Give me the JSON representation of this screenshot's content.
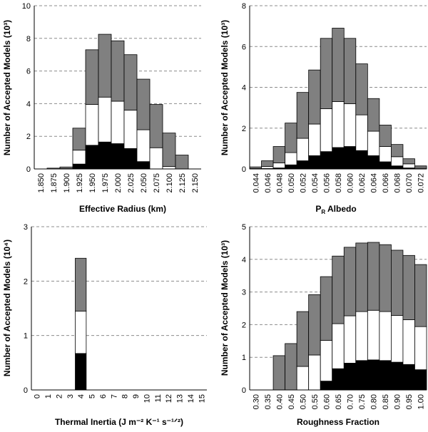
{
  "chart_data": [
    {
      "type": "bar",
      "stacked": true,
      "title": "",
      "xlabel": "Effective Radius (km)",
      "ylabel": "Number of Accepted Models (10³)",
      "ylim": [
        0,
        10
      ],
      "yticks": [
        "0",
        "2",
        "4",
        "6",
        "8",
        "10"
      ],
      "grid": true,
      "categories": [
        "1.850",
        "1.875",
        "1.900",
        "1.925",
        "1.950",
        "1.975",
        "2.000",
        "2.025",
        "2.050",
        "2.075",
        "2.100",
        "2.125",
        "2.150"
      ],
      "series": [
        {
          "name": "black",
          "color": "#000000",
          "values": [
            0,
            0,
            0,
            0.3,
            1.45,
            1.65,
            1.55,
            1.25,
            0.45,
            0,
            0,
            0,
            0
          ]
        },
        {
          "name": "white",
          "color": "#ffffff",
          "values": [
            0,
            0,
            0.02,
            0.85,
            2.5,
            2.75,
            2.6,
            2.35,
            1.95,
            1.3,
            0.15,
            0,
            0
          ]
        },
        {
          "name": "gray",
          "color": "#808080",
          "values": [
            0,
            0.05,
            0.1,
            1.35,
            3.35,
            3.85,
            3.7,
            3.4,
            3.1,
            2.65,
            2.05,
            0.85,
            0
          ]
        }
      ]
    },
    {
      "type": "bar",
      "stacked": true,
      "title": "",
      "xlabel": "P_R Albedo",
      "xlabel_main": "P",
      "xlabel_sub": "R",
      "xlabel_rest": " Albedo",
      "ylabel": "Number of Accepted Models (10³)",
      "ylim": [
        0,
        8
      ],
      "yticks": [
        "0",
        "2",
        "4",
        "6",
        "8"
      ],
      "grid": true,
      "categories": [
        "0.044",
        "0.046",
        "0.048",
        "0.050",
        "0.052",
        "0.054",
        "0.056",
        "0.058",
        "0.060",
        "0.062",
        "0.064",
        "0.066",
        "0.068",
        "0.070",
        "0.072"
      ],
      "series": [
        {
          "name": "black",
          "color": "#000000",
          "values": [
            0,
            0.02,
            0.05,
            0.2,
            0.4,
            0.65,
            0.85,
            1.05,
            1.1,
            0.9,
            0.65,
            0.35,
            0.15,
            0.05,
            0.02
          ]
        },
        {
          "name": "white",
          "color": "#ffffff",
          "values": [
            0.02,
            0.1,
            0.25,
            0.6,
            1.1,
            1.55,
            2.1,
            2.25,
            2.1,
            1.75,
            1.2,
            0.75,
            0.45,
            0.2,
            0.05
          ]
        },
        {
          "name": "gray",
          "color": "#808080",
          "values": [
            0.08,
            0.28,
            0.8,
            1.45,
            2.25,
            2.65,
            3.45,
            3.6,
            3.2,
            2.5,
            1.6,
            1.05,
            0.6,
            0.25,
            0.08
          ]
        }
      ]
    },
    {
      "type": "bar",
      "stacked": true,
      "title": "",
      "xlabel": "Thermal Inertia (J m⁻² K⁻¹ s⁻¹ᐟ²)",
      "ylabel": "Number of Accepted Models (10⁴)",
      "ylim": [
        0,
        3
      ],
      "yticks": [
        "0",
        "1",
        "2",
        "3"
      ],
      "grid": true,
      "categories": [
        "0",
        "1",
        "2",
        "3",
        "4",
        "5",
        "6",
        "7",
        "8",
        "9",
        "10",
        "11",
        "12",
        "13",
        "14",
        "15"
      ],
      "series": [
        {
          "name": "black",
          "color": "#000000",
          "values": [
            0,
            0,
            0,
            0,
            0.67,
            0,
            0,
            0,
            0,
            0,
            0,
            0,
            0,
            0,
            0,
            0
          ]
        },
        {
          "name": "white",
          "color": "#ffffff",
          "values": [
            0,
            0,
            0,
            0,
            0.78,
            0,
            0,
            0,
            0,
            0,
            0,
            0,
            0,
            0,
            0,
            0
          ]
        },
        {
          "name": "gray",
          "color": "#808080",
          "values": [
            0,
            0,
            0,
            0,
            0.97,
            0,
            0,
            0,
            0,
            0,
            0,
            0,
            0,
            0,
            0,
            0
          ]
        }
      ]
    },
    {
      "type": "bar",
      "stacked": true,
      "title": "",
      "xlabel": "Roughness Fraction",
      "ylabel": "Number of Accepted Models (10³)",
      "ylim": [
        0,
        5
      ],
      "yticks": [
        "0",
        "1",
        "2",
        "3",
        "4",
        "5"
      ],
      "grid": true,
      "categories": [
        "0.30",
        "0.35",
        "0.40",
        "0.45",
        "0.50",
        "0.55",
        "0.60",
        "0.65",
        "0.70",
        "0.75",
        "0.80",
        "0.85",
        "0.90",
        "0.95",
        "1.00"
      ],
      "series": [
        {
          "name": "black",
          "color": "#000000",
          "values": [
            0,
            0,
            0,
            0,
            0,
            0,
            0.27,
            0.65,
            0.82,
            0.9,
            0.92,
            0.9,
            0.85,
            0.78,
            0.62
          ]
        },
        {
          "name": "white",
          "color": "#ffffff",
          "values": [
            0,
            0,
            0,
            0,
            0.72,
            1.07,
            1.25,
            1.38,
            1.45,
            1.5,
            1.52,
            1.5,
            1.43,
            1.37,
            1.32
          ]
        },
        {
          "name": "gray",
          "color": "#808080",
          "values": [
            0,
            0,
            1.05,
            1.42,
            1.68,
            1.85,
            1.95,
            2.07,
            2.1,
            2.1,
            2.08,
            2.05,
            2.0,
            1.97,
            1.9
          ]
        }
      ]
    }
  ]
}
